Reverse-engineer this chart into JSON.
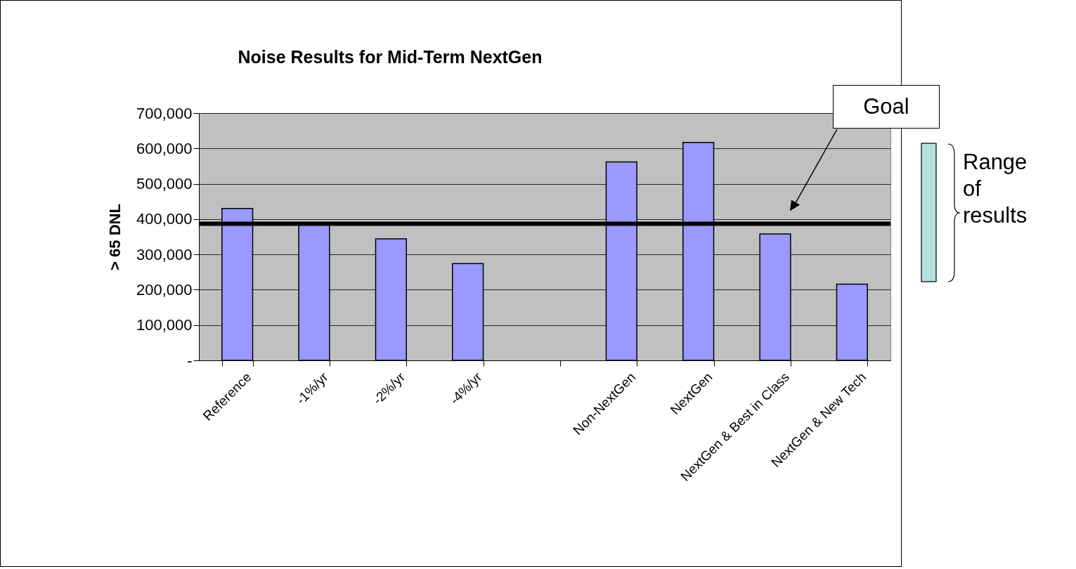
{
  "chart_data": {
    "type": "bar",
    "title": "Noise Results for Mid-Term NextGen",
    "ylabel": "> 65 DNL",
    "categories": [
      "Reference",
      "-1%/yr",
      "-2%/yr",
      "-4%/yr",
      null,
      "Non-NextGen",
      "NextGen",
      "NextGen & Best in Class",
      "NextGen & New Tech"
    ],
    "values": [
      430000,
      385000,
      344000,
      274000,
      null,
      562000,
      617000,
      358000,
      216000
    ],
    "color": "#9999ff",
    "ylim": [
      0,
      700000
    ],
    "yticks": [
      {
        "value": 0,
        "label": "-"
      },
      {
        "value": 100000,
        "label": "100,000"
      },
      {
        "value": 200000,
        "label": "200,000"
      },
      {
        "value": 300000,
        "label": "300,000"
      },
      {
        "value": 400000,
        "label": "400,000"
      },
      {
        "value": 500000,
        "label": "500,000"
      },
      {
        "value": 600000,
        "label": "600,000"
      },
      {
        "value": 700000,
        "label": "700,000"
      }
    ],
    "grid": "y",
    "ref_lines": [
      {
        "axis": "y",
        "value": 387000,
        "label": "Goal",
        "color": "#000000"
      }
    ],
    "annotations": [
      "Range of results"
    ]
  }
}
